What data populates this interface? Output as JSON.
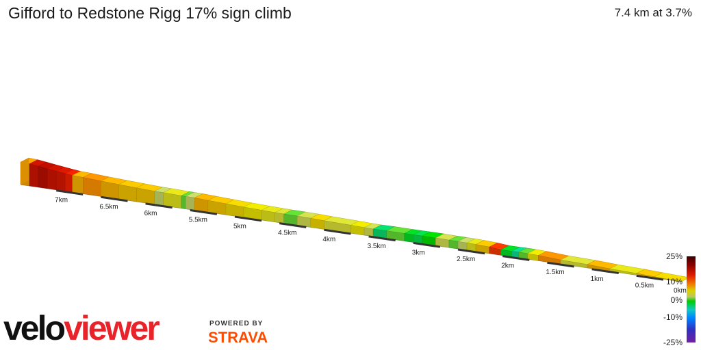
{
  "header": {
    "title": "Gifford to Redstone Rigg 17% sign climb",
    "summary": "7.4 km at 3.7%"
  },
  "branding": {
    "logo_part1": "velo",
    "logo_part2": "viewer",
    "powered_by": "POWERED BY",
    "strava": "STRAVA",
    "logo_colors": {
      "velo": "#111111",
      "viewer": "#e8242a",
      "strava": "#fc4c02"
    }
  },
  "chart_data": {
    "type": "area",
    "title": "Gifford to Redstone Rigg 17% sign climb",
    "subtitle": "7.4 km at 3.7%",
    "x_direction": "descending",
    "xlabel": "",
    "ylabel": "",
    "distance_ticks": [
      "7km",
      "6.5km",
      "6km",
      "5.5km",
      "5km",
      "4.5km",
      "4km",
      "3.5km",
      "3km",
      "2.5km",
      "2km",
      "1.5km",
      "1km",
      "0.5km",
      "0km"
    ],
    "distance_tick_values": [
      7,
      6.5,
      6,
      5.5,
      5,
      4.5,
      4,
      3.5,
      3,
      2.5,
      2,
      1.5,
      1,
      0.5,
      0
    ],
    "x_range_km": [
      0,
      7.4
    ],
    "gradient_colorbar": {
      "labels": [
        "25%",
        "10%",
        "0%",
        "-10%",
        "-25%"
      ],
      "values": [
        25,
        10,
        0,
        -10,
        -25
      ],
      "colors": [
        "#3a0000",
        "#8b0000",
        "#e01e00",
        "#f07800",
        "#d9d400",
        "#b8c860",
        "#00cc00",
        "#10c8c8",
        "#0080ff",
        "#3030c0",
        "#7020a0"
      ]
    },
    "segments": [
      {
        "start_km": 0.0,
        "end_km": 0.3,
        "gradient": 3.5
      },
      {
        "start_km": 0.3,
        "end_km": 0.5,
        "gradient": 4.0
      },
      {
        "start_km": 0.5,
        "end_km": 0.8,
        "gradient": 2.5
      },
      {
        "start_km": 0.8,
        "end_km": 1.05,
        "gradient": 4.5
      },
      {
        "start_km": 1.05,
        "end_km": 1.35,
        "gradient": 2.0
      },
      {
        "start_km": 1.35,
        "end_km": 1.6,
        "gradient": 5.5
      },
      {
        "start_km": 1.6,
        "end_km": 1.72,
        "gradient": 3.0
      },
      {
        "start_km": 1.72,
        "end_km": 1.82,
        "gradient": 0.5
      },
      {
        "start_km": 1.82,
        "end_km": 1.9,
        "gradient": -2.0
      },
      {
        "start_km": 1.9,
        "end_km": 2.02,
        "gradient": -0.5
      },
      {
        "start_km": 2.02,
        "end_km": 2.15,
        "gradient": 9.0
      },
      {
        "start_km": 2.15,
        "end_km": 2.3,
        "gradient": 4.0
      },
      {
        "start_km": 2.3,
        "end_km": 2.4,
        "gradient": 2.5
      },
      {
        "start_km": 2.4,
        "end_km": 2.5,
        "gradient": 1.0
      },
      {
        "start_km": 2.5,
        "end_km": 2.6,
        "gradient": 0.5
      },
      {
        "start_km": 2.6,
        "end_km": 2.75,
        "gradient": 1.5
      },
      {
        "start_km": 2.75,
        "end_km": 2.9,
        "gradient": 0.0
      },
      {
        "start_km": 2.9,
        "end_km": 3.0,
        "gradient": -1.0
      },
      {
        "start_km": 3.0,
        "end_km": 3.1,
        "gradient": -0.5
      },
      {
        "start_km": 3.1,
        "end_km": 3.3,
        "gradient": 0.5
      },
      {
        "start_km": 3.3,
        "end_km": 3.45,
        "gradient": -1.5
      },
      {
        "start_km": 3.45,
        "end_km": 3.55,
        "gradient": 1.5
      },
      {
        "start_km": 3.55,
        "end_km": 3.7,
        "gradient": 3.0
      },
      {
        "start_km": 3.7,
        "end_km": 4.0,
        "gradient": 2.0
      },
      {
        "start_km": 4.0,
        "end_km": 4.15,
        "gradient": 3.5
      },
      {
        "start_km": 4.15,
        "end_km": 4.3,
        "gradient": 1.5
      },
      {
        "start_km": 4.3,
        "end_km": 4.45,
        "gradient": 0.5
      },
      {
        "start_km": 4.45,
        "end_km": 4.55,
        "gradient": 2.0
      },
      {
        "start_km": 4.55,
        "end_km": 4.7,
        "gradient": 2.5
      },
      {
        "start_km": 4.7,
        "end_km": 4.9,
        "gradient": 3.0
      },
      {
        "start_km": 4.9,
        "end_km": 5.1,
        "gradient": 3.5
      },
      {
        "start_km": 5.1,
        "end_km": 5.3,
        "gradient": 4.0
      },
      {
        "start_km": 5.3,
        "end_km": 5.45,
        "gradient": 4.5
      },
      {
        "start_km": 5.45,
        "end_km": 5.55,
        "gradient": 1.0
      },
      {
        "start_km": 5.55,
        "end_km": 5.6,
        "gradient": 0.5
      },
      {
        "start_km": 5.6,
        "end_km": 5.8,
        "gradient": 2.5
      },
      {
        "start_km": 5.8,
        "end_km": 5.9,
        "gradient": 1.0
      },
      {
        "start_km": 5.9,
        "end_km": 6.1,
        "gradient": 4.0
      },
      {
        "start_km": 6.1,
        "end_km": 6.3,
        "gradient": 4.0
      },
      {
        "start_km": 6.3,
        "end_km": 6.5,
        "gradient": 4.5
      },
      {
        "start_km": 6.5,
        "end_km": 6.7,
        "gradient": 5.5
      },
      {
        "start_km": 6.7,
        "end_km": 6.82,
        "gradient": 4.5
      },
      {
        "start_km": 6.82,
        "end_km": 6.9,
        "gradient": 10.0
      },
      {
        "start_km": 6.9,
        "end_km": 7.0,
        "gradient": 11.5
      },
      {
        "start_km": 7.0,
        "end_km": 7.1,
        "gradient": 12.0
      },
      {
        "start_km": 7.1,
        "end_km": 7.2,
        "gradient": 13.0
      },
      {
        "start_km": 7.2,
        "end_km": 7.3,
        "gradient": 12.0
      },
      {
        "start_km": 7.3,
        "end_km": 7.4,
        "gradient": 5.0
      }
    ]
  }
}
